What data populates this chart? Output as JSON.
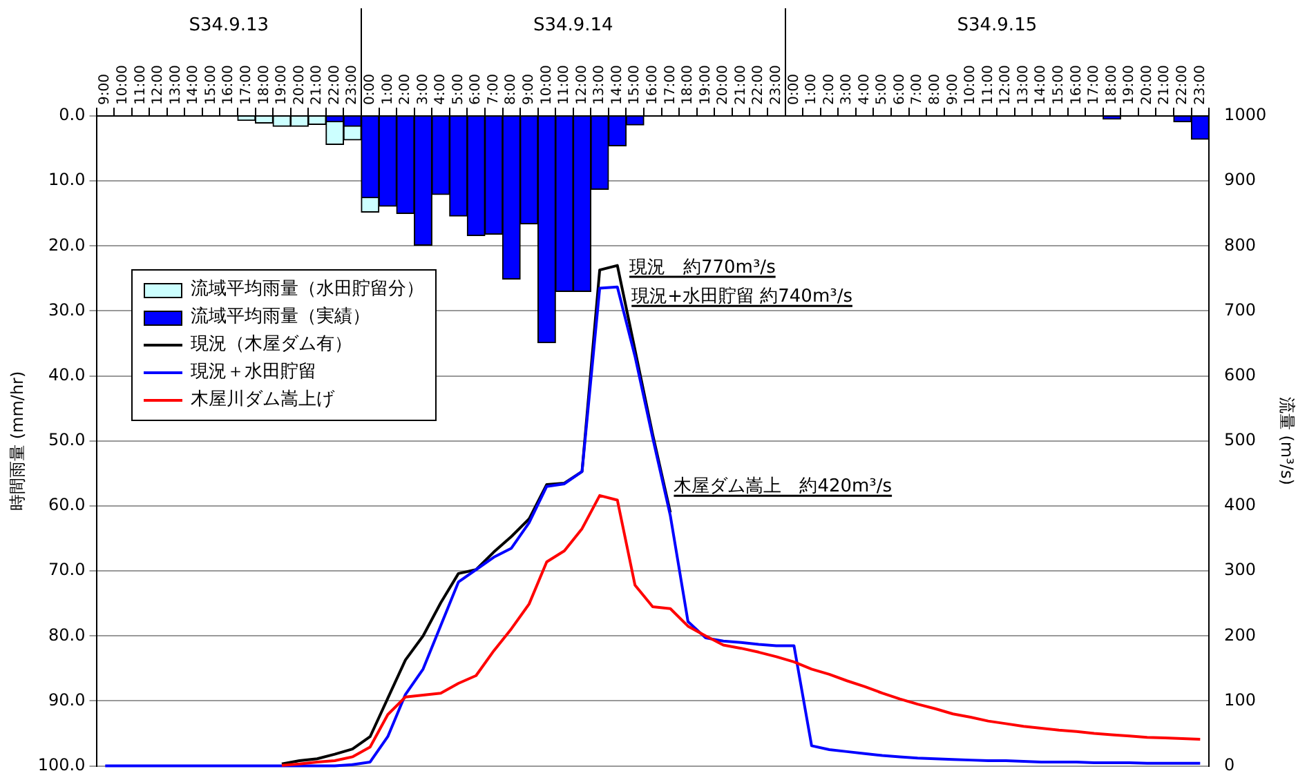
{
  "chart_data": {
    "type": "bar",
    "ylabel": "時間雨量 (mm/hr)",
    "y2label": "流量 (m³/s)",
    "categories": [
      "9:00",
      "10:00",
      "11:00",
      "12:00",
      "13:00",
      "14:00",
      "15:00",
      "16:00",
      "17:00",
      "18:00",
      "19:00",
      "20:00",
      "21:00",
      "22:00",
      "23:00",
      "0:00",
      "1:00",
      "2:00",
      "3:00",
      "4:00",
      "5:00",
      "6:00",
      "7:00",
      "8:00",
      "9:00",
      "10:00",
      "11:00",
      "12:00",
      "13:00",
      "14:00",
      "15:00",
      "16:00",
      "17:00",
      "18:00",
      "19:00",
      "20:00",
      "21:00",
      "22:00",
      "23:00",
      "0:00",
      "1:00",
      "2:00",
      "3:00",
      "4:00",
      "5:00",
      "6:00",
      "7:00",
      "8:00",
      "9:00",
      "10:00",
      "11:00",
      "12:00",
      "13:00",
      "14:00",
      "15:00",
      "16:00",
      "17:00",
      "18:00",
      "19:00",
      "20:00",
      "21:00",
      "22:00",
      "23:00"
    ],
    "stacked": true,
    "series": [
      {
        "name": "流域平均雨量（実績）",
        "color": "#0000ff",
        "values": [
          null,
          null,
          null,
          null,
          null,
          null,
          null,
          null,
          null,
          null,
          null,
          null,
          null,
          0.9,
          1.6,
          12.6,
          13.9,
          15.0,
          19.9,
          12.1,
          15.4,
          18.4,
          18.2,
          25.1,
          16.6,
          34.9,
          27.0,
          27.0,
          11.3,
          4.6,
          1.4,
          null,
          null,
          null,
          null,
          null,
          null,
          null,
          null,
          null,
          null,
          null,
          null,
          null,
          null,
          null,
          null,
          null,
          null,
          null,
          null,
          null,
          null,
          null,
          null,
          null,
          null,
          0.5,
          null,
          null,
          null,
          0.9,
          3.6
        ]
      },
      {
        "name": "流域平均雨量（水田貯留分）",
        "color": "#ccffff",
        "values": [
          null,
          null,
          null,
          null,
          null,
          null,
          null,
          null,
          0.7,
          1.1,
          1.6,
          1.6,
          1.3,
          3.5,
          2.1,
          2.2,
          null,
          null,
          null,
          null,
          null,
          null,
          null,
          null,
          null,
          null,
          null,
          null,
          null,
          null,
          null,
          null,
          null,
          null,
          null,
          null,
          null,
          null,
          null,
          null,
          null,
          null,
          null,
          null,
          null,
          null,
          null,
          null,
          null,
          null,
          null,
          null,
          null,
          null,
          null,
          null,
          null,
          null,
          null,
          null,
          null,
          null,
          null
        ]
      },
      {
        "name": "現況（木屋ダム有）",
        "type": "line",
        "axis": "y2",
        "color": "#000000",
        "values": [
          null,
          null,
          null,
          null,
          null,
          null,
          null,
          null,
          null,
          null,
          3,
          8,
          11,
          18,
          26,
          45,
          104,
          163,
          200,
          251,
          296,
          302,
          329,
          353,
          380,
          433,
          435,
          453,
          763,
          770,
          640,
          510,
          390,
          null,
          null,
          null,
          null,
          null,
          null,
          null,
          null,
          null,
          null,
          null,
          null,
          null,
          null,
          null,
          null,
          null,
          null,
          null,
          null,
          null,
          null,
          null,
          null,
          null,
          null,
          null,
          null,
          null,
          null
        ]
      },
      {
        "name": "現況＋水田貯留",
        "type": "line",
        "axis": "y2",
        "color": "#0000ff",
        "values": [
          0,
          0,
          0,
          0,
          0,
          0,
          0,
          0,
          0,
          0,
          0,
          0,
          0,
          0,
          2,
          6,
          45,
          110,
          149,
          216,
          283,
          302,
          321,
          335,
          374,
          430,
          434,
          453,
          735,
          737,
          630,
          505,
          385,
          222,
          197,
          192,
          190,
          187,
          185,
          185,
          31,
          25,
          22,
          19,
          16,
          14,
          12,
          11,
          10,
          9,
          8,
          8,
          7,
          6,
          6,
          6,
          5,
          5,
          5,
          4,
          4,
          4,
          4
        ]
      },
      {
        "name": "木屋川ダム嵩上げ",
        "type": "line",
        "axis": "y2",
        "color": "#ff0000",
        "values": [
          null,
          null,
          null,
          null,
          null,
          null,
          null,
          null,
          null,
          null,
          1,
          3,
          6,
          8,
          14,
          29,
          79,
          106,
          109,
          112,
          127,
          139,
          177,
          211,
          249,
          314,
          331,
          365,
          416,
          409,
          278,
          245,
          242,
          215,
          200,
          186,
          181,
          175,
          168,
          160,
          149,
          141,
          131,
          122,
          112,
          103,
          95,
          88,
          80,
          75,
          69,
          65,
          61,
          58,
          55,
          53,
          50,
          48,
          46,
          44,
          43,
          42,
          41
        ]
      }
    ],
    "ylim": [
      100,
      0
    ],
    "yticks": [
      {
        "value": 0,
        "label": "0.0"
      },
      {
        "value": 10,
        "label": "10.0"
      },
      {
        "value": 20,
        "label": "20.0"
      },
      {
        "value": 30,
        "label": "30.0"
      },
      {
        "value": 40,
        "label": "40.0"
      },
      {
        "value": 50,
        "label": "50.0"
      },
      {
        "value": 60,
        "label": "60.0"
      },
      {
        "value": 70,
        "label": "70.0"
      },
      {
        "value": 80,
        "label": "80.0"
      },
      {
        "value": 90,
        "label": "90.0"
      },
      {
        "value": 100,
        "label": "100.0"
      }
    ],
    "y2lim": [
      0,
      1000
    ],
    "y2ticks": [
      0,
      100,
      200,
      300,
      400,
      500,
      600,
      700,
      800,
      900,
      1000
    ],
    "grid": "y",
    "legend": "top left",
    "annotations": [
      "S34.9.13",
      "S34.9.14",
      "S34.9.15",
      "現況　約770m³/s",
      "現況+水田貯留 約740m³/s",
      "木屋ダム嵩上　約420m³/s"
    ]
  }
}
